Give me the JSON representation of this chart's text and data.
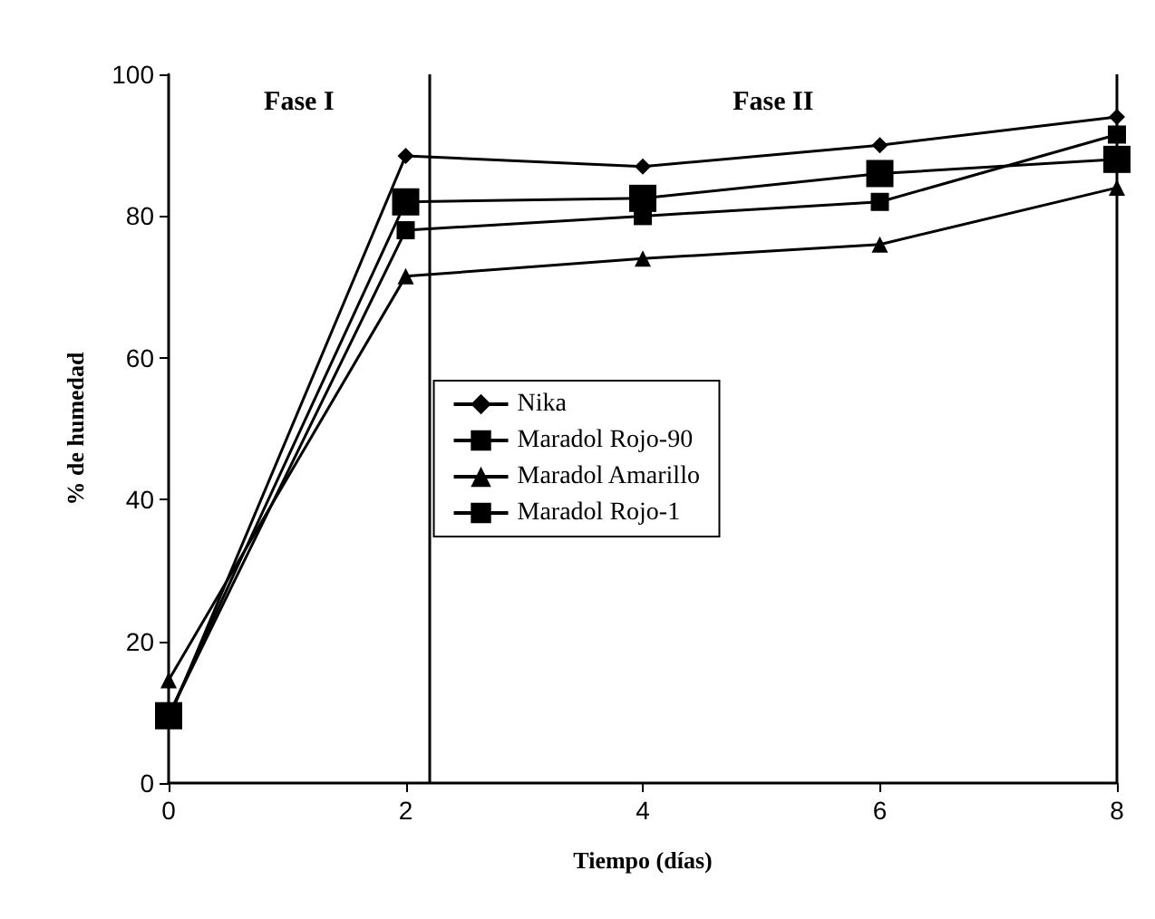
{
  "chart_data": {
    "type": "line",
    "xlabel": "Tiempo (días)",
    "ylabel": "% de humedad",
    "x": [
      0,
      2,
      4,
      6,
      8
    ],
    "series": [
      {
        "name": "Nika",
        "color": "#000000",
        "marker": "diamond",
        "values": [
          9,
          88.5,
          87,
          90,
          94
        ]
      },
      {
        "name": "Maradol Rojo-90",
        "color": "#000000",
        "marker": "square",
        "values": [
          9.5,
          78,
          80,
          82,
          91.5
        ]
      },
      {
        "name": "Maradol Amarillo",
        "color": "#000000",
        "marker": "triangle",
        "values": [
          14.5,
          71.5,
          74,
          76,
          84
        ]
      },
      {
        "name": "Maradol Rojo-1",
        "color": "#000000",
        "marker": "square",
        "values": [
          9.5,
          82,
          82.5,
          86,
          88
        ]
      }
    ],
    "xlim": [
      0,
      8
    ],
    "xticks": [
      0,
      2,
      4,
      6,
      8
    ],
    "ylim": [
      0,
      100
    ],
    "yticks": [
      0,
      20,
      40,
      60,
      80,
      100
    ],
    "ref_lines": [
      {
        "axis": "x",
        "value": 2.2,
        "color": "#000000"
      },
      {
        "axis": "x",
        "value": 8,
        "color": "#000000"
      }
    ],
    "annotations": [
      "Fase I",
      "Fase II"
    ],
    "grid": false,
    "legend": "center",
    "line_style": "solid"
  }
}
